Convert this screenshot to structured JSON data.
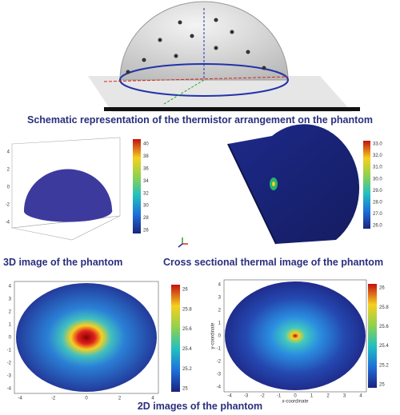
{
  "captions": {
    "schematic": "Schematic representation of the thermistor arrangement on the phantom",
    "image3d": "3D image of the phantom",
    "cross": "Cross sectional thermal image of the phantom",
    "images2d": "2D images of the phantom"
  },
  "panel3d": {
    "colorbar": [
      "40",
      "38",
      "36",
      "34",
      "32",
      "30",
      "28",
      "26"
    ],
    "axis_ticks": [
      "4",
      "2",
      "0",
      "-2",
      "-4"
    ]
  },
  "cross_section": {
    "colorbar": [
      "33.0",
      "32.0",
      "31.0",
      "30.0",
      "29.0",
      "28.0",
      "27.0",
      "26.0"
    ]
  },
  "map_left": {
    "colorbar": [
      "26",
      "25.8",
      "25.6",
      "25.4",
      "25.2",
      "25"
    ],
    "xticks": [
      "-4",
      "-2",
      "0",
      "2",
      "4"
    ],
    "yticks": [
      "4",
      "3",
      "2",
      "1",
      "0",
      "-1",
      "-2",
      "-3",
      "-4"
    ]
  },
  "map_right": {
    "colorbar": [
      "26",
      "25.8",
      "25.6",
      "25.4",
      "25.2",
      "25"
    ],
    "xticks": [
      "-4",
      "-3",
      "-2",
      "-1",
      "0",
      "1",
      "2",
      "3",
      "4"
    ],
    "yticks": [
      "4",
      "3",
      "2",
      "1",
      "0",
      "-1",
      "-2",
      "-3",
      "-4"
    ],
    "xlabel": "x-coordinate",
    "ylabel": "y-coordinate"
  }
}
